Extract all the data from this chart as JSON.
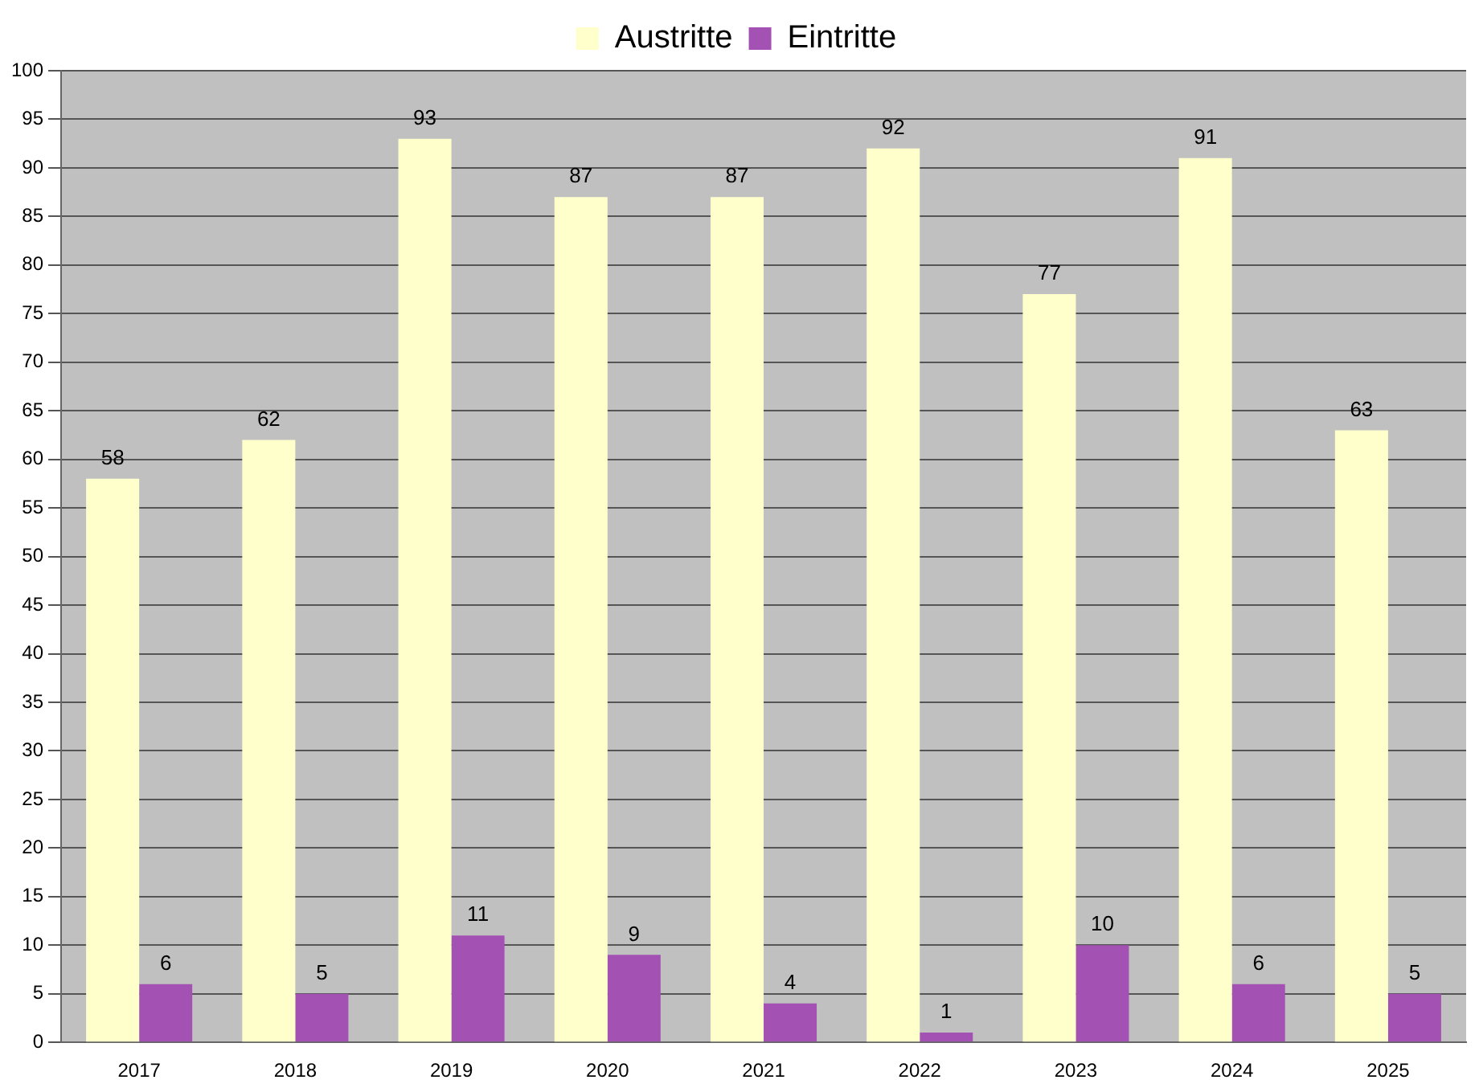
{
  "chart_data": {
    "type": "bar",
    "categories": [
      "2017",
      "2018",
      "2019",
      "2020",
      "2021",
      "2022",
      "2023",
      "2024",
      "2025"
    ],
    "series": [
      {
        "name": "Austritte",
        "color": "#ffffcc",
        "values": [
          58,
          62,
          93,
          87,
          87,
          92,
          77,
          91,
          63
        ]
      },
      {
        "name": "Eintritte",
        "color": "#a352b3",
        "values": [
          6,
          5,
          11,
          9,
          4,
          1,
          10,
          6,
          5
        ]
      }
    ],
    "ylim": [
      0,
      100
    ],
    "yticks": [
      0,
      5,
      10,
      15,
      20,
      25,
      30,
      35,
      40,
      45,
      50,
      55,
      60,
      65,
      70,
      75,
      80,
      85,
      90,
      95,
      100
    ],
    "grid": "y",
    "legend": "top",
    "data_labels": true
  }
}
